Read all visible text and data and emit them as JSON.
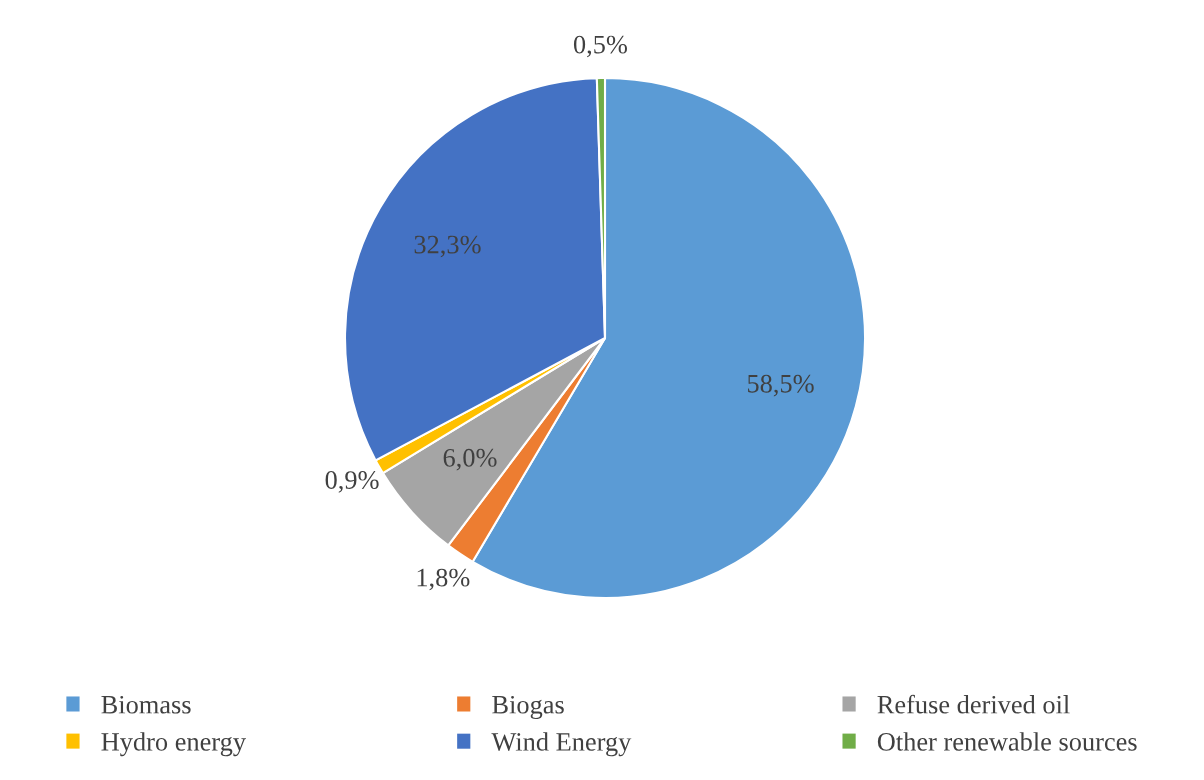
{
  "chart_data": {
    "type": "pie",
    "categories": [
      "Biomass",
      "Biogas",
      "Refuse derived oil",
      "Hydro energy",
      "Wind Energy",
      "Other renewable sources"
    ],
    "values": [
      58.5,
      1.8,
      6.0,
      0.9,
      32.3,
      0.5
    ],
    "value_labels": [
      "58,5%",
      "1,8%",
      "6,0%",
      "0,9%",
      "32,3%",
      "0,5%"
    ],
    "colors": [
      "#5b9bd5",
      "#ed7d31",
      "#a5a5a5",
      "#ffc000",
      "#4472c4",
      "#70ad47"
    ],
    "legend": "bottom"
  }
}
